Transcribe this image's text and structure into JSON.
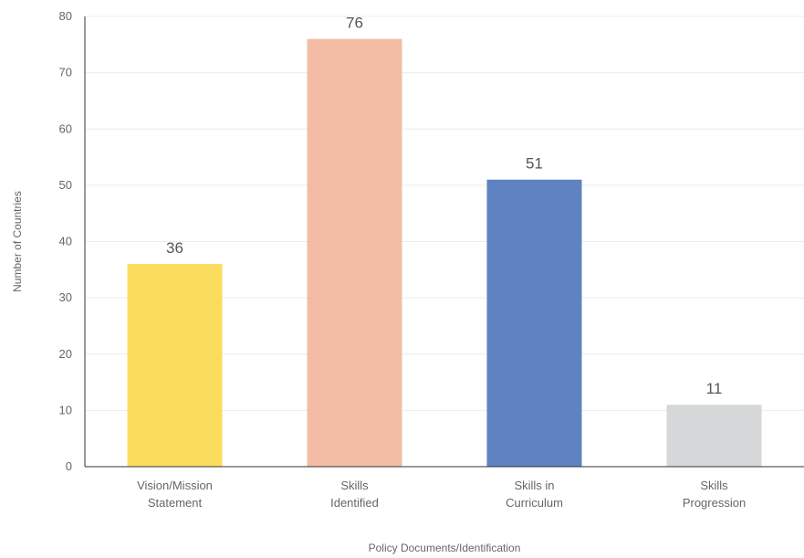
{
  "chart_data": {
    "type": "bar",
    "title": "",
    "xlabel": "Policy Documents/Identification",
    "ylabel": "Number of Countries",
    "ylim": [
      0,
      80
    ],
    "yticks": [
      0,
      10,
      20,
      30,
      40,
      50,
      60,
      70,
      80
    ],
    "grid": true,
    "categories": [
      [
        "Vision/Mission",
        "Statement"
      ],
      [
        "Skills",
        "Identified"
      ],
      [
        "Skills in",
        "Curriculum"
      ],
      [
        "Skills",
        "Progression"
      ]
    ],
    "values": [
      36,
      76,
      51,
      11
    ],
    "data_labels": [
      "36",
      "76",
      "51",
      "11"
    ],
    "colors": [
      "#fbdc5c",
      "#f2bca4",
      "#5f82c1",
      "#d6d7d8"
    ]
  }
}
